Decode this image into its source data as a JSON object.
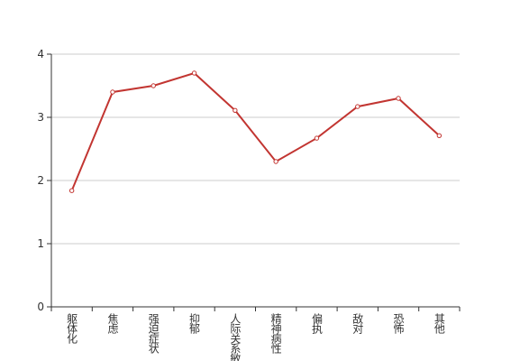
{
  "chart_data": {
    "type": "line",
    "categories": [
      "躯体化",
      "焦虑",
      "强迫症状",
      "抑郁",
      "人际关系敏感",
      "精神病性",
      "偏执",
      "敌对",
      "恐怖",
      "其他"
    ],
    "series": [
      {
        "color": "#c23531",
        "values": [
          1.84,
          3.4,
          3.5,
          3.7,
          3.11,
          2.3,
          2.67,
          3.17,
          3.3,
          2.71
        ]
      }
    ],
    "ylim": [
      0,
      4
    ],
    "yticks": [
      0,
      1,
      2,
      3,
      4
    ],
    "grid": true
  }
}
